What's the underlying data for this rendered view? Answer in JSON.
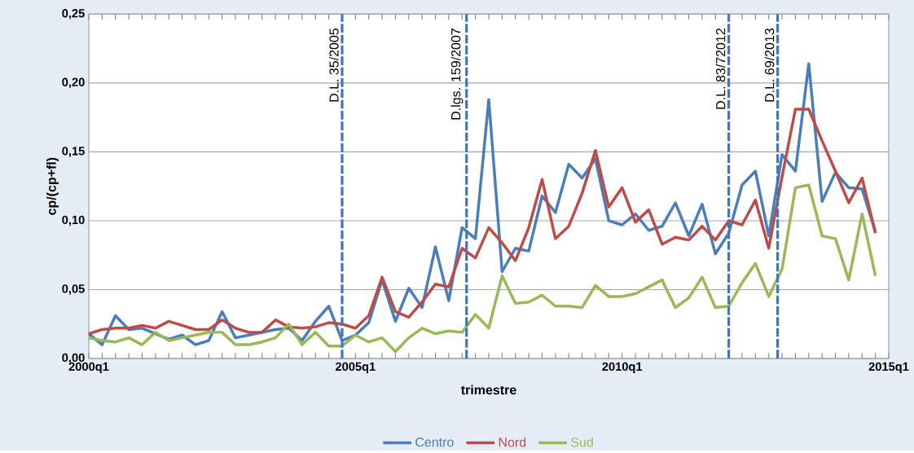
{
  "chart_data": {
    "type": "line",
    "xlabel": "trimestre",
    "ylabel": "cp/(cp+fl)",
    "x": [
      "2000-01",
      "2000-04",
      "2000-07",
      "2000-10",
      "2001-01",
      "2001-04",
      "2001-07",
      "2001-10",
      "2002-01",
      "2002-04",
      "2002-07",
      "2002-10",
      "2003-01",
      "2003-04",
      "2003-07",
      "2003-10",
      "2004-01",
      "2004-04",
      "2004-07",
      "2004-10",
      "2005-01",
      "2005-04",
      "2005-07",
      "2005-10",
      "2006-01",
      "2006-04",
      "2006-07",
      "2006-10",
      "2007-01",
      "2007-04",
      "2007-07",
      "2007-10",
      "2008-01",
      "2008-04",
      "2008-07",
      "2008-10",
      "2009-01",
      "2009-04",
      "2009-07",
      "2009-10",
      "2010-01",
      "2010-04",
      "2010-07",
      "2010-10",
      "2011-01",
      "2011-04",
      "2011-07",
      "2011-10",
      "2012-01",
      "2012-04",
      "2012-07",
      "2012-10",
      "2013-01",
      "2013-04",
      "2013-07",
      "2013-10",
      "2014-01",
      "2014-04",
      "2014-07",
      "2014-10"
    ],
    "series": [
      {
        "name": "Centro",
        "color": "#4a7ebb",
        "values": [
          0.018,
          0.01,
          0.031,
          0.021,
          0.022,
          0.018,
          0.014,
          0.017,
          0.01,
          0.013,
          0.034,
          0.015,
          0.017,
          0.019,
          0.021,
          0.022,
          0.013,
          0.027,
          0.038,
          0.013,
          0.017,
          0.026,
          0.057,
          0.027,
          0.051,
          0.037,
          0.081,
          0.042,
          0.095,
          0.087,
          0.188,
          0.063,
          0.08,
          0.078,
          0.118,
          0.106,
          0.141,
          0.131,
          0.145,
          0.1,
          0.097,
          0.105,
          0.093,
          0.096,
          0.113,
          0.089,
          0.112,
          0.076,
          0.091,
          0.126,
          0.136,
          0.089,
          0.148,
          0.136,
          0.214,
          0.114,
          0.135,
          0.124,
          0.123,
          0.092
        ]
      },
      {
        "name": "Nord",
        "color": "#be4b48",
        "values": [
          0.018,
          0.021,
          0.022,
          0.022,
          0.024,
          0.022,
          0.027,
          0.024,
          0.021,
          0.021,
          0.028,
          0.022,
          0.019,
          0.019,
          0.028,
          0.023,
          0.022,
          0.023,
          0.026,
          0.025,
          0.022,
          0.031,
          0.059,
          0.034,
          0.03,
          0.041,
          0.054,
          0.052,
          0.08,
          0.073,
          0.095,
          0.084,
          0.071,
          0.095,
          0.13,
          0.087,
          0.096,
          0.12,
          0.151,
          0.11,
          0.124,
          0.099,
          0.108,
          0.083,
          0.088,
          0.086,
          0.096,
          0.086,
          0.1,
          0.097,
          0.115,
          0.08,
          0.132,
          0.181,
          0.181,
          0.158,
          0.136,
          0.113,
          0.131,
          0.091
        ]
      },
      {
        "name": "Sud",
        "color": "#98b954",
        "values": [
          0.015,
          0.013,
          0.012,
          0.015,
          0.01,
          0.019,
          0.013,
          0.015,
          0.017,
          0.019,
          0.019,
          0.01,
          0.01,
          0.012,
          0.015,
          0.025,
          0.01,
          0.019,
          0.009,
          0.009,
          0.017,
          0.012,
          0.015,
          0.005,
          0.015,
          0.022,
          0.018,
          0.02,
          0.019,
          0.032,
          0.022,
          0.06,
          0.04,
          0.041,
          0.046,
          0.038,
          0.038,
          0.037,
          0.053,
          0.045,
          0.045,
          0.047,
          0.052,
          0.057,
          0.037,
          0.044,
          0.059,
          0.037,
          0.038,
          0.055,
          0.069,
          0.045,
          0.065,
          0.124,
          0.126,
          0.089,
          0.087,
          0.057,
          0.105,
          0.06
        ]
      }
    ],
    "xlim": [
      "2000-01",
      "2015-01"
    ],
    "xticks": [
      {
        "value": "2000-01",
        "label": "2000q1"
      },
      {
        "value": "2005-01",
        "label": "2005q1"
      },
      {
        "value": "2010-01",
        "label": "2010q1"
      },
      {
        "value": "2015-01",
        "label": "2015q1"
      }
    ],
    "ylim": [
      0,
      0.25
    ],
    "yticks": [
      {
        "value": 0,
        "label": "0,00"
      },
      {
        "value": 0.05,
        "label": "0,05"
      },
      {
        "value": 0.1,
        "label": "0,10"
      },
      {
        "value": 0.15,
        "label": "0,15"
      },
      {
        "value": 0.2,
        "label": "0,20"
      },
      {
        "value": 0.25,
        "label": "0,25"
      }
    ],
    "ref_lines": [
      {
        "axis": "x",
        "value": "2004-10",
        "label": "D.L. 35/2005",
        "color": "#3f76c4",
        "line_style": "dashed"
      },
      {
        "axis": "x",
        "value": "2007-02",
        "label": "D.lgs. 159/2007",
        "color": "#3f76c4",
        "line_style": "dashed"
      },
      {
        "axis": "x",
        "value": "2012-01",
        "label": "D.L. 83/72012",
        "color": "#3f76c4",
        "line_style": "dashed"
      },
      {
        "axis": "x",
        "value": "2012-12",
        "label": "D.L. 69/2013",
        "color": "#3f76c4",
        "line_style": "dashed"
      }
    ],
    "grid": "y",
    "legend": "bottom",
    "marker": "none",
    "line_style": "solid"
  }
}
